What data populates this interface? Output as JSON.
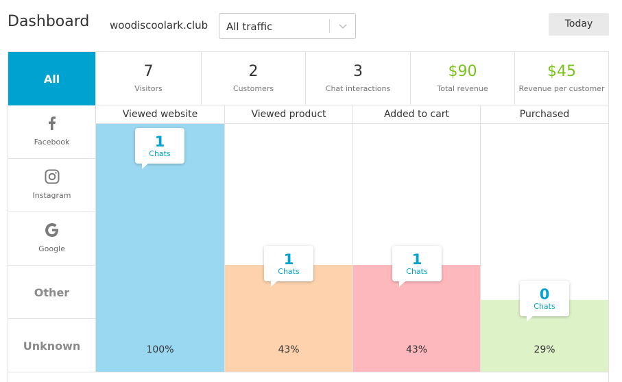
{
  "header": {
    "title": "Dashboard",
    "domain": "woodiscoolark.club",
    "traffic_select": {
      "value": "All traffic"
    },
    "date_button": "Today"
  },
  "sidebar": {
    "items": [
      {
        "label": "All",
        "icon": null,
        "active": true
      },
      {
        "label": "Facebook",
        "icon": "facebook-icon"
      },
      {
        "label": "Instagram",
        "icon": "instagram-icon"
      },
      {
        "label": "Google",
        "icon": "google-icon"
      },
      {
        "label": "Other",
        "icon": null
      },
      {
        "label": "Unknown",
        "icon": null
      }
    ]
  },
  "stats": [
    {
      "value": "7",
      "label": "Visitors"
    },
    {
      "value": "2",
      "label": "Customers"
    },
    {
      "value": "3",
      "label": "Chat interactions"
    },
    {
      "value": "$90",
      "label": "Total revenue"
    },
    {
      "value": "$45",
      "label": "Revenue per customer"
    }
  ],
  "funnel": [
    {
      "stage": "Viewed website",
      "percent": "100%",
      "fill_fraction": 1.0,
      "chats": "1",
      "chats_label": "Chats",
      "color": "#9ad8f2"
    },
    {
      "stage": "Viewed product",
      "percent": "43%",
      "fill_fraction": 0.43,
      "chats": "1",
      "chats_label": "Chats",
      "color": "#fdd2ad"
    },
    {
      "stage": "Added to cart",
      "percent": "43%",
      "fill_fraction": 0.43,
      "chats": "1",
      "chats_label": "Chats",
      "color": "#fdb8bd"
    },
    {
      "stage": "Purchased",
      "percent": "29%",
      "fill_fraction": 0.29,
      "chats": "0",
      "chats_label": "Chats",
      "color": "#def2c8"
    }
  ],
  "colors": {
    "accent": "#00a3cf",
    "revenue": "#7ac31a"
  }
}
